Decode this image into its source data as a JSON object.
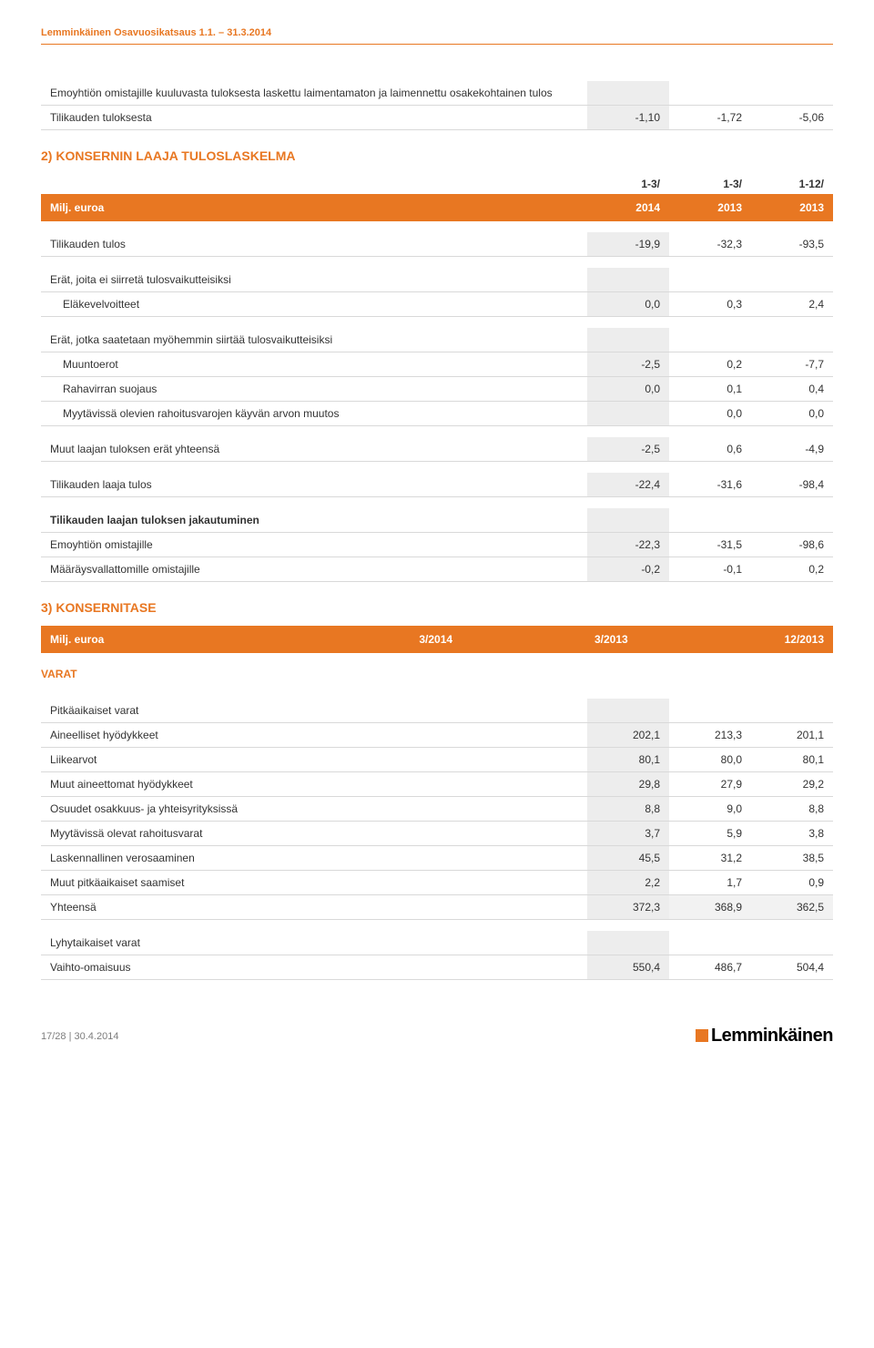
{
  "colors": {
    "accent": "#e87722",
    "row_border": "#d9d9d9",
    "grey_cell": "#ededed",
    "text": "#333333"
  },
  "header": {
    "title": "Lemminkäinen Osavuosikatsaus 1.1. – 31.3.2014"
  },
  "top_table": {
    "row1_label": "Emoyhtiön omistajille kuuluvasta tuloksesta laskettu laimentamaton ja laimennettu osakekohtainen tulos",
    "row2_label": "Tilikauden tuloksesta",
    "row2_vals": [
      "-1,10",
      "-1,72",
      "-5,06"
    ]
  },
  "section2": {
    "title": "2) KONSERNIN LAAJA TULOSLASKELMA",
    "pre_header": [
      "1-3/",
      "1-3/",
      "1-12/"
    ],
    "header": [
      "Milj. euroa",
      "2014",
      "2013",
      "2013"
    ],
    "tilikauden_tulos": {
      "label": "Tilikauden tulos",
      "vals": [
        "-19,9",
        "-32,3",
        "-93,5"
      ]
    },
    "erat_ei": {
      "label": "Erät, joita ei siirretä tulosvaikutteisiksi",
      "elakeve": {
        "label": "Eläkevelvoitteet",
        "vals": [
          "0,0",
          "0,3",
          "2,4"
        ]
      }
    },
    "erat_jotka": {
      "label": "Erät, jotka saatetaan myöhemmin siirtää tulosvaikutteisiksi",
      "muuntoerot": {
        "label": "Muuntoerot",
        "vals": [
          "-2,5",
          "0,2",
          "-7,7"
        ]
      },
      "rahavirran": {
        "label": "Rahavirran suojaus",
        "vals": [
          "0,0",
          "0,1",
          "0,4"
        ]
      },
      "myytavissa": {
        "label": "Myytävissä olevien rahoitusvarojen käyvän arvon muutos",
        "vals": [
          "",
          "0,0",
          "0,0"
        ]
      }
    },
    "muut_laajan": {
      "label": "Muut laajan tuloksen erät yhteensä",
      "vals": [
        "-2,5",
        "0,6",
        "-4,9"
      ]
    },
    "tilikauden_laaja": {
      "label": "Tilikauden laaja tulos",
      "vals": [
        "-22,4",
        "-31,6",
        "-98,4"
      ]
    },
    "jakautuminen": {
      "header": "Tilikauden laajan tuloksen jakautuminen",
      "emo": {
        "label": "Emoyhtiön omistajille",
        "vals": [
          "-22,3",
          "-31,5",
          "-98,6"
        ]
      },
      "maarays": {
        "label": "Määräysvallattomille omistajille",
        "vals": [
          "-0,2",
          "-0,1",
          "0,2"
        ]
      }
    }
  },
  "section3": {
    "title": "3) KONSERNITASE",
    "header": [
      "Milj. euroa",
      "3/2014",
      "3/2013",
      "12/2013"
    ],
    "varat_heading": "VARAT",
    "pitka": {
      "label": "Pitkäaikaiset varat",
      "rows": [
        {
          "label": "Aineelliset hyödykkeet",
          "vals": [
            "202,1",
            "213,3",
            "201,1"
          ]
        },
        {
          "label": "Liikearvot",
          "vals": [
            "80,1",
            "80,0",
            "80,1"
          ]
        },
        {
          "label": "Muut aineettomat hyödykkeet",
          "vals": [
            "29,8",
            "27,9",
            "29,2"
          ]
        },
        {
          "label": "Osuudet osakkuus- ja yhteisyrityksissä",
          "vals": [
            "8,8",
            "9,0",
            "8,8"
          ]
        },
        {
          "label": "Myytävissä olevat rahoitusvarat",
          "vals": [
            "3,7",
            "5,9",
            "3,8"
          ]
        },
        {
          "label": "Laskennallinen verosaaminen",
          "vals": [
            "45,5",
            "31,2",
            "38,5"
          ]
        },
        {
          "label": "Muut pitkäaikaiset saamiset",
          "vals": [
            "2,2",
            "1,7",
            "0,9"
          ]
        }
      ],
      "yhteensa": {
        "label": "Yhteensä",
        "vals": [
          "372,3",
          "368,9",
          "362,5"
        ]
      }
    },
    "lyhyt": {
      "label": "Lyhytaikaiset varat",
      "vaihto": {
        "label": "Vaihto-omaisuus",
        "vals": [
          "550,4",
          "486,7",
          "504,4"
        ]
      }
    }
  },
  "footer": {
    "left": "17/28 | 30.4.2014",
    "logo_text": "Lemminkäinen"
  }
}
